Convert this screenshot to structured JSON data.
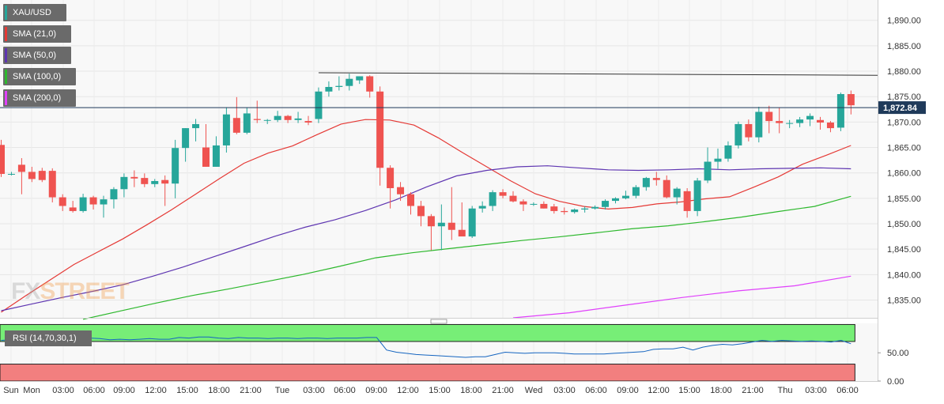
{
  "chart_data": {
    "type": "candlestick",
    "symbol": "XAU/USD",
    "legend": [
      {
        "label": "XAU/USD",
        "color": "#26a69a"
      },
      {
        "label": "SMA (21,0)",
        "color": "#e53935"
      },
      {
        "label": "SMA (50,0)",
        "color": "#5e35b1"
      },
      {
        "label": "SMA (100,0)",
        "color": "#2db82d"
      },
      {
        "label": "SMA (200,0)",
        "color": "#e040fb"
      }
    ],
    "ylim": [
      1831.5,
      1894.0
    ],
    "y_ticks": [
      "1,835.00",
      "1,840.00",
      "1,845.00",
      "1,850.00",
      "1,855.00",
      "1,860.00",
      "1,865.00",
      "1,870.00",
      "1,875.00",
      "1,880.00",
      "1,885.00",
      "1,890.00"
    ],
    "x_labels": [
      "Sun",
      "Mon",
      "03:00",
      "06:00",
      "09:00",
      "12:00",
      "15:00",
      "18:00",
      "21:00",
      "Tue",
      "03:00",
      "06:00",
      "09:00",
      "12:00",
      "15:00",
      "18:00",
      "21:00",
      "Wed",
      "03:00",
      "06:00",
      "09:00",
      "12:00",
      "15:00",
      "18:00",
      "21:00",
      "Thu",
      "03:00",
      "06:00"
    ],
    "current_price": "1,872.84",
    "current_price_value": 1872.84,
    "resistance_line": [
      1879.7,
      1879.2
    ],
    "candles": [
      [
        1865.5,
        1866.5,
        1859.2,
        1859.8
      ],
      [
        1859.8,
        1860.2,
        1859.5,
        1859.8
      ],
      [
        1861.6,
        1862.9,
        1855.8,
        1860.2
      ],
      [
        1860.2,
        1861.2,
        1858.2,
        1858.8
      ],
      [
        1860.4,
        1861.0,
        1858.2,
        1858.6
      ],
      [
        1860.4,
        1860.9,
        1854.2,
        1855.2
      ],
      [
        1855.2,
        1855.8,
        1852.5,
        1853.5
      ],
      [
        1853.2,
        1854.5,
        1852.2,
        1852.5
      ],
      [
        1852.5,
        1855.9,
        1852.2,
        1855.2
      ],
      [
        1855.2,
        1855.5,
        1852.8,
        1853.8
      ],
      [
        1853.8,
        1855.5,
        1851.2,
        1854.8
      ],
      [
        1854.8,
        1857.2,
        1853.0,
        1856.8
      ],
      [
        1856.8,
        1859.9,
        1855.2,
        1859.2
      ],
      [
        1859.2,
        1860.5,
        1857.2,
        1858.9
      ],
      [
        1859.0,
        1859.9,
        1857.2,
        1857.8
      ],
      [
        1857.8,
        1858.8,
        1857.2,
        1858.4
      ],
      [
        1858.6,
        1859.5,
        1853.5,
        1857.9
      ],
      [
        1857.9,
        1866.5,
        1855.0,
        1864.9
      ],
      [
        1864.9,
        1868.8,
        1862.2,
        1868.8
      ],
      [
        1868.8,
        1870.6,
        1866.2,
        1869.6
      ],
      [
        1865.0,
        1869.6,
        1861.2,
        1861.2
      ],
      [
        1861.2,
        1867.2,
        1861.2,
        1865.4
      ],
      [
        1865.4,
        1872.9,
        1864.0,
        1871.5
      ],
      [
        1870.8,
        1874.9,
        1867.6,
        1867.9
      ],
      [
        1867.9,
        1872.8,
        1867.6,
        1871.7
      ],
      [
        1870.6,
        1874.2,
        1869.8,
        1870.4
      ],
      [
        1870.4,
        1870.6,
        1869.6,
        1870.4
      ],
      [
        1870.4,
        1872.2,
        1870.0,
        1871.2
      ],
      [
        1871.2,
        1871.4,
        1869.8,
        1870.4
      ],
      [
        1870.4,
        1872.0,
        1869.8,
        1870.7
      ],
      [
        1870.2,
        1871.2,
        1869.4,
        1869.9
      ],
      [
        1870.6,
        1876.8,
        1869.8,
        1876.0
      ],
      [
        1876.0,
        1878.0,
        1875.0,
        1876.9
      ],
      [
        1876.9,
        1879.0,
        1876.2,
        1877.1
      ],
      [
        1877.1,
        1879.5,
        1876.2,
        1878.5
      ],
      [
        1878.2,
        1879.0,
        1877.5,
        1879.0
      ],
      [
        1879.0,
        1879.2,
        1874.8,
        1876.0
      ],
      [
        1876.0,
        1877.0,
        1857.5,
        1861.0
      ],
      [
        1861.0,
        1861.5,
        1853.0,
        1857.0
      ],
      [
        1857.2,
        1858.2,
        1854.5,
        1855.8
      ],
      [
        1855.8,
        1856.2,
        1851.8,
        1853.5
      ],
      [
        1853.5,
        1854.5,
        1849.5,
        1851.5
      ],
      [
        1851.5,
        1851.9,
        1844.8,
        1849.5
      ],
      [
        1849.5,
        1853.8,
        1844.8,
        1850.2
      ],
      [
        1850.2,
        1857.2,
        1846.8,
        1848.8
      ],
      [
        1848.8,
        1854.2,
        1848.0,
        1847.5
      ],
      [
        1847.5,
        1853.5,
        1847.2,
        1853.0
      ],
      [
        1853.0,
        1854.4,
        1852.2,
        1853.5
      ],
      [
        1853.5,
        1856.6,
        1852.5,
        1856.2
      ],
      [
        1856.2,
        1856.8,
        1855.0,
        1855.5
      ],
      [
        1855.5,
        1856.4,
        1854.2,
        1854.4
      ],
      [
        1854.4,
        1854.8,
        1852.5,
        1853.8
      ],
      [
        1853.8,
        1854.2,
        1853.5,
        1853.9
      ],
      [
        1853.9,
        1854.4,
        1853.0,
        1853.0
      ],
      [
        1853.4,
        1853.9,
        1852.0,
        1852.5
      ],
      [
        1852.5,
        1853.2,
        1851.8,
        1852.3
      ],
      [
        1852.3,
        1853.0,
        1852.0,
        1852.8
      ],
      [
        1852.8,
        1853.4,
        1852.2,
        1853.0
      ],
      [
        1853.0,
        1853.6,
        1852.8,
        1853.3
      ],
      [
        1853.3,
        1854.8,
        1852.8,
        1854.5
      ],
      [
        1854.5,
        1855.2,
        1854.0,
        1855.0
      ],
      [
        1855.0,
        1856.5,
        1854.8,
        1855.5
      ],
      [
        1855.5,
        1857.6,
        1855.0,
        1857.2
      ],
      [
        1857.2,
        1859.2,
        1856.5,
        1859.0
      ],
      [
        1859.0,
        1860.2,
        1857.5,
        1858.6
      ],
      [
        1858.6,
        1859.5,
        1855.0,
        1855.2
      ],
      [
        1855.2,
        1857.2,
        1853.8,
        1856.9
      ],
      [
        1856.4,
        1857.0,
        1851.2,
        1852.5
      ],
      [
        1852.5,
        1859.0,
        1851.5,
        1858.5
      ],
      [
        1858.5,
        1865.0,
        1858.0,
        1862.2
      ],
      [
        1862.2,
        1864.8,
        1860.8,
        1862.8
      ],
      [
        1862.8,
        1866.2,
        1862.2,
        1865.4
      ],
      [
        1865.4,
        1870.1,
        1864.8,
        1869.6
      ],
      [
        1869.6,
        1870.5,
        1866.2,
        1867.0
      ],
      [
        1867.0,
        1873.0,
        1866.0,
        1872.0
      ],
      [
        1872.0,
        1873.2,
        1867.8,
        1870.2
      ],
      [
        1870.2,
        1872.8,
        1867.8,
        1869.8
      ],
      [
        1869.8,
        1870.4,
        1868.8,
        1869.8
      ],
      [
        1869.8,
        1871.0,
        1869.0,
        1870.5
      ],
      [
        1870.5,
        1871.7,
        1869.2,
        1871.2
      ],
      [
        1870.4,
        1871.0,
        1868.5,
        1869.9
      ],
      [
        1869.9,
        1870.2,
        1868.0,
        1868.8
      ],
      [
        1868.9,
        1875.8,
        1868.2,
        1875.5
      ],
      [
        1875.5,
        1876.2,
        1871.5,
        1873.3
      ]
    ],
    "sma21": [
      1832.6,
      1835.8,
      1838.9,
      1842.0,
      1844.5,
      1847.0,
      1849.8,
      1852.7,
      1855.8,
      1858.9,
      1861.9,
      1863.9,
      1865.3,
      1867.5,
      1869.6,
      1870.5,
      1870.4,
      1869.4,
      1866.9,
      1864.0,
      1861.2,
      1858.4,
      1855.9,
      1854.4,
      1853.4,
      1852.9,
      1853.2,
      1853.9,
      1854.3,
      1854.9,
      1855.3,
      1857.2,
      1859.2,
      1861.7,
      1863.5,
      1865.4
    ],
    "sma50": [
      1832.9,
      1834.2,
      1835.5,
      1836.7,
      1838.0,
      1839.7,
      1841.5,
      1843.5,
      1845.5,
      1847.5,
      1849.3,
      1850.8,
      1852.6,
      1854.7,
      1857.2,
      1859.4,
      1860.5,
      1861.2,
      1861.4,
      1861.0,
      1860.6,
      1860.5,
      1860.6,
      1860.8,
      1860.6,
      1860.8,
      1860.9,
      1861.0,
      1860.8
    ],
    "sma100": [
      1831.2,
      1832.8,
      1834.4,
      1835.9,
      1837.2,
      1838.6,
      1840.0,
      1841.6,
      1843.3,
      1844.3,
      1845.1,
      1845.9,
      1846.7,
      1847.4,
      1848.2,
      1849.0,
      1849.6,
      1850.4,
      1851.3,
      1852.4,
      1853.4,
      1855.4
    ],
    "sma200": [
      1831.5,
      1832.5,
      1834.0,
      1835.5,
      1836.8,
      1837.8,
      1839.7
    ],
    "rsi": {
      "label": "RSI (14,70,30,1)",
      "overbought": 70,
      "oversold": 30,
      "y_ticks": [
        "0.00",
        "50.00"
      ],
      "values": [
        72,
        73,
        72,
        74,
        74,
        75,
        74,
        75,
        74,
        76,
        75,
        73,
        74,
        73,
        74,
        75,
        74,
        74,
        77,
        76,
        78,
        78,
        76,
        75,
        77,
        76,
        76,
        75,
        76,
        76,
        75,
        76,
        76,
        75,
        76,
        76,
        76,
        77,
        77,
        55,
        51,
        49,
        47,
        46,
        45,
        44,
        43,
        42,
        43,
        43,
        47,
        51,
        50,
        49,
        50,
        50,
        50,
        49,
        48,
        48,
        48,
        48,
        49,
        50,
        51,
        52,
        56,
        57,
        57,
        60,
        55,
        60,
        63,
        65,
        64,
        66,
        69,
        72,
        70,
        72,
        71,
        70,
        71,
        70,
        69,
        72,
        66
      ],
      "colors": {
        "line": "#1565c0",
        "overbought_fill": "#77ee77",
        "oversold_fill": "#f27f7f"
      }
    }
  },
  "watermark": {
    "part1": "FX",
    "part2": "STREET"
  }
}
